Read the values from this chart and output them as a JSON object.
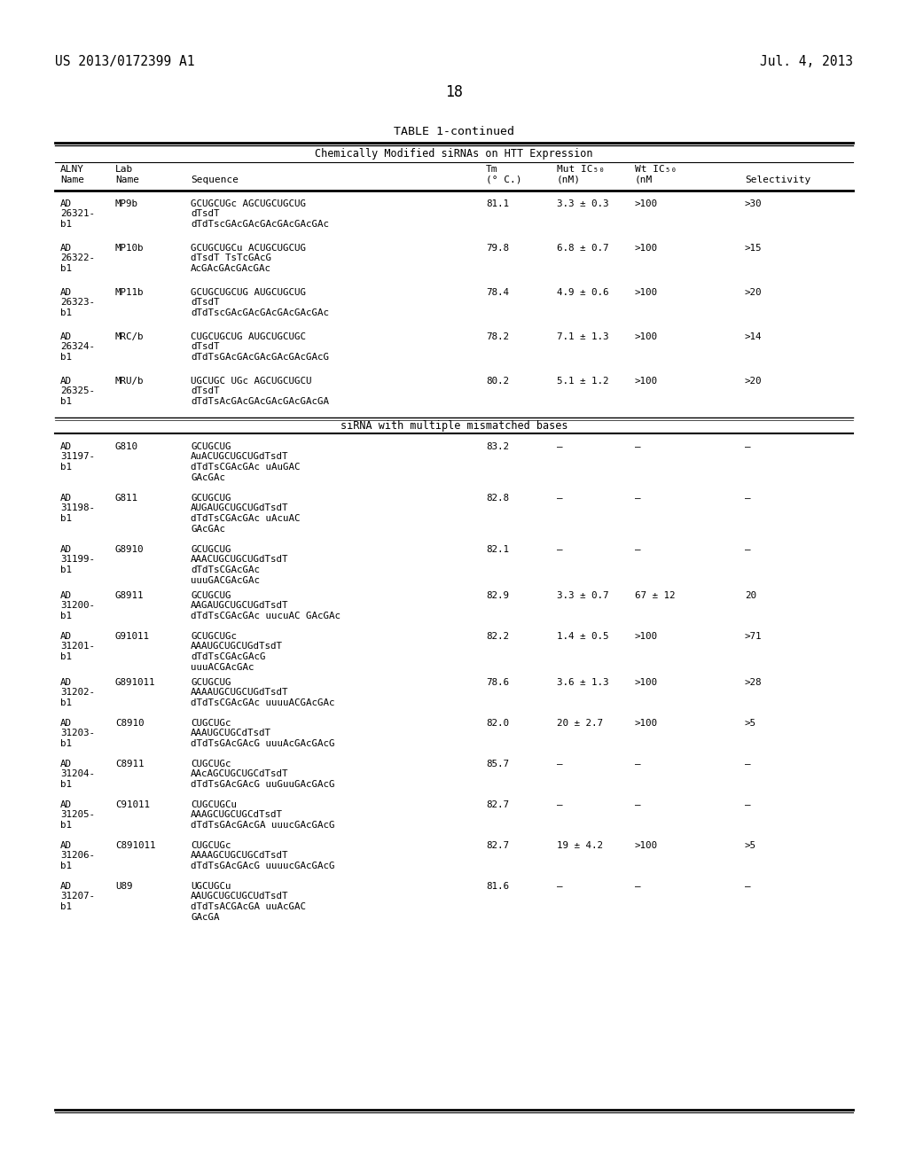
{
  "title_left": "US 2013/0172399 A1",
  "title_right": "Jul. 4, 2013",
  "page_number": "18",
  "table_title": "TABLE 1-continued",
  "section1_header": "Chemically Modified siRNAs on HTT Expression",
  "section2_header": "siRNA with multiple mismatched bases",
  "background": "#ffffff",
  "text_color": "#000000",
  "rows_section1": [
    {
      "alny": [
        "AD",
        "26321-",
        "b1"
      ],
      "lab": "MP9b",
      "seq": [
        "GCUGCUGc AGCUGCUGCUG",
        "dTsdT",
        "dTdTscGAcGAcGAcGAcGAcGAc"
      ],
      "tm": "81.1",
      "mut": "3.3 ± 0.3",
      "wt": ">100",
      "sel": ">30"
    },
    {
      "alny": [
        "AD",
        "26322-",
        "b1"
      ],
      "lab": "MP10b",
      "seq": [
        "GCUGCUGCu ACUGCUGCUG",
        "dTsdT TsTcGAcG",
        "AcGAcGAcGAcGAc"
      ],
      "tm": "79.8",
      "mut": "6.8 ± 0.7",
      "wt": ">100",
      "sel": ">15"
    },
    {
      "alny": [
        "AD",
        "26323-",
        "b1"
      ],
      "lab": "MP11b",
      "seq": [
        "GCUGCUGCUG AUGCUGCUG",
        "dTsdT",
        "dTdTscGAcGAcGAcGAcGAcGAc"
      ],
      "tm": "78.4",
      "mut": "4.9 ± 0.6",
      "wt": ">100",
      "sel": ">20"
    },
    {
      "alny": [
        "AD",
        "26324-",
        "b1"
      ],
      "lab": "MRC/b",
      "seq": [
        "CUGCUGCUG AUGCUGCUGC",
        "dTsdT",
        "dTdTsGAcGAcGAcGAcGAcGAcG"
      ],
      "tm": "78.2",
      "mut": "7.1 ± 1.3",
      "wt": ">100",
      "sel": ">14"
    },
    {
      "alny": [
        "AD",
        "26325-",
        "b1"
      ],
      "lab": "MRU/b",
      "seq": [
        "UGCUGC UGc AGCUGCUGCU",
        "dTsdT",
        "dTdTsAcGAcGAcGAcGAcGAcGA"
      ],
      "tm": "80.2",
      "mut": "5.1 ± 1.2",
      "wt": ">100",
      "sel": ">20"
    }
  ],
  "rows_section2": [
    {
      "alny": [
        "AD",
        "31197-",
        "b1"
      ],
      "lab": "G810",
      "seq": [
        "GCUGCUG",
        "AuACUGCUGCUGdTsdT",
        "dTdTsCGAcGAc uAuGAC",
        "GAcGAc"
      ],
      "tm": "83.2",
      "mut": "—",
      "wt": "—",
      "sel": "—"
    },
    {
      "alny": [
        "AD",
        "31198-",
        "b1"
      ],
      "lab": "G811",
      "seq": [
        "GCUGCUG",
        "AUGAUGCUGCUGdTsdT",
        "dTdTsCGAcGAc uAcuAC",
        "GAcGAc"
      ],
      "tm": "82.8",
      "mut": "—",
      "wt": "—",
      "sel": "—"
    },
    {
      "alny": [
        "AD",
        "31199-",
        "b1"
      ],
      "lab": "G8910",
      "seq": [
        "GCUGCUG",
        "AAACUGCUGCUGdTsdT",
        "dTdTsCGAcGAc",
        "uuuGACGAcGAc"
      ],
      "tm": "82.1",
      "mut": "—",
      "wt": "—",
      "sel": "—"
    },
    {
      "alny": [
        "AD",
        "31200-",
        "b1"
      ],
      "lab": "G8911",
      "seq": [
        "GCUGCUG",
        "AAGAUGCUGCUGdTsdT",
        "dTdTsCGAcGAc uucuAC GAcGAc"
      ],
      "tm": "82.9",
      "mut": "3.3 ± 0.7",
      "wt": "67 ± 12",
      "sel": "20"
    },
    {
      "alny": [
        "AD",
        "31201-",
        "b1"
      ],
      "lab": "G91011",
      "seq": [
        "GCUGCUGc",
        "AAAUGCUGCUGdTsdT",
        "dTdTsCGAcGAcG",
        "uuuACGAcGAc"
      ],
      "tm": "82.2",
      "mut": "1.4 ± 0.5",
      "wt": ">100",
      "sel": ">71"
    },
    {
      "alny": [
        "AD",
        "31202-",
        "b1"
      ],
      "lab": "G891011",
      "seq": [
        "GCUGCUG",
        "AAAAUGCUGCUGdTsdT",
        "dTdTsCGAcGAc uuuuACGAcGAc"
      ],
      "tm": "78.6",
      "mut": "3.6 ± 1.3",
      "wt": ">100",
      "sel": ">28"
    },
    {
      "alny": [
        "AD",
        "31203-",
        "b1"
      ],
      "lab": "C8910",
      "seq": [
        "CUGCUGc",
        "AAAUGCUGCdTsdT",
        "dTdTsGAcGAcG uuuAcGAcGAcG"
      ],
      "tm": "82.0",
      "mut": "20 ± 2.7",
      "wt": ">100",
      "sel": ">5"
    },
    {
      "alny": [
        "AD",
        "31204-",
        "b1"
      ],
      "lab": "C8911",
      "seq": [
        "CUGCUGc",
        "AAcAGCUGCUGCdTsdT",
        "dTdTsGAcGAcG uuGuuGAcGAcG"
      ],
      "tm": "85.7",
      "mut": "—",
      "wt": "—",
      "sel": "—"
    },
    {
      "alny": [
        "AD",
        "31205-",
        "b1"
      ],
      "lab": "C91011",
      "seq": [
        "CUGCUGCu",
        "AAAGCUGCUGCdTsdT",
        "dTdTsGAcGAcGA uuucGAcGAcG"
      ],
      "tm": "82.7",
      "mut": "—",
      "wt": "—",
      "sel": "—"
    },
    {
      "alny": [
        "AD",
        "31206-",
        "b1"
      ],
      "lab": "C891011",
      "seq": [
        "CUGCUGc",
        "AAAAGCUGCUGCdTsdT",
        "dTdTsGAcGAcG uuuucGAcGAcG"
      ],
      "tm": "82.7",
      "mut": "19 ± 4.2",
      "wt": ">100",
      "sel": ">5"
    },
    {
      "alny": [
        "AD",
        "31207-",
        "b1"
      ],
      "lab": "U89",
      "seq": [
        "UGCUGCu",
        "AAUGCUGCUGCUdTsdT",
        "dTdTsACGAcGA uuAcGAC",
        "GAcGA"
      ],
      "tm": "81.6",
      "mut": "—",
      "wt": "—",
      "sel": "—"
    }
  ]
}
